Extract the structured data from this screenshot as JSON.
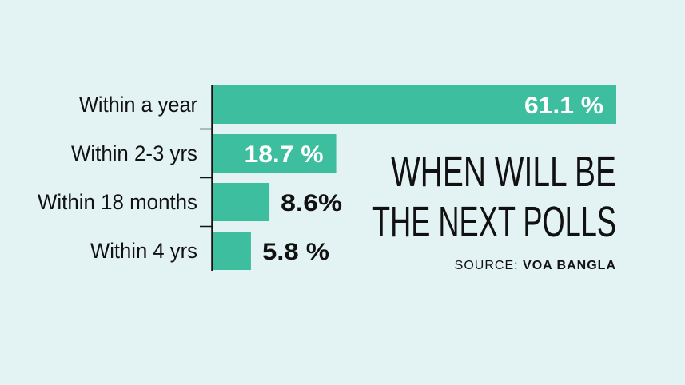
{
  "chart_data": {
    "type": "bar",
    "orientation": "horizontal",
    "title": [
      "WHEN WILL BE",
      "THE NEXT POLLS"
    ],
    "source_prefix": "SOURCE:",
    "source_name": "VOA BANGLA",
    "categories": [
      "Within a year",
      "Within 2-3 yrs",
      "Within 18 months",
      "Within 4 yrs"
    ],
    "values": [
      61.1,
      18.7,
      8.6,
      5.8
    ],
    "value_labels": [
      "61.1 %",
      "18.7 %",
      "8.6%",
      "5.8 %"
    ],
    "xlim": [
      0,
      61.1
    ],
    "grid": false,
    "colors": {
      "background": "#e3f2f2",
      "bar": "#3dbf9f",
      "axis": "#111111",
      "label_inside": "#ffffff",
      "label_outside": "#111111"
    }
  }
}
